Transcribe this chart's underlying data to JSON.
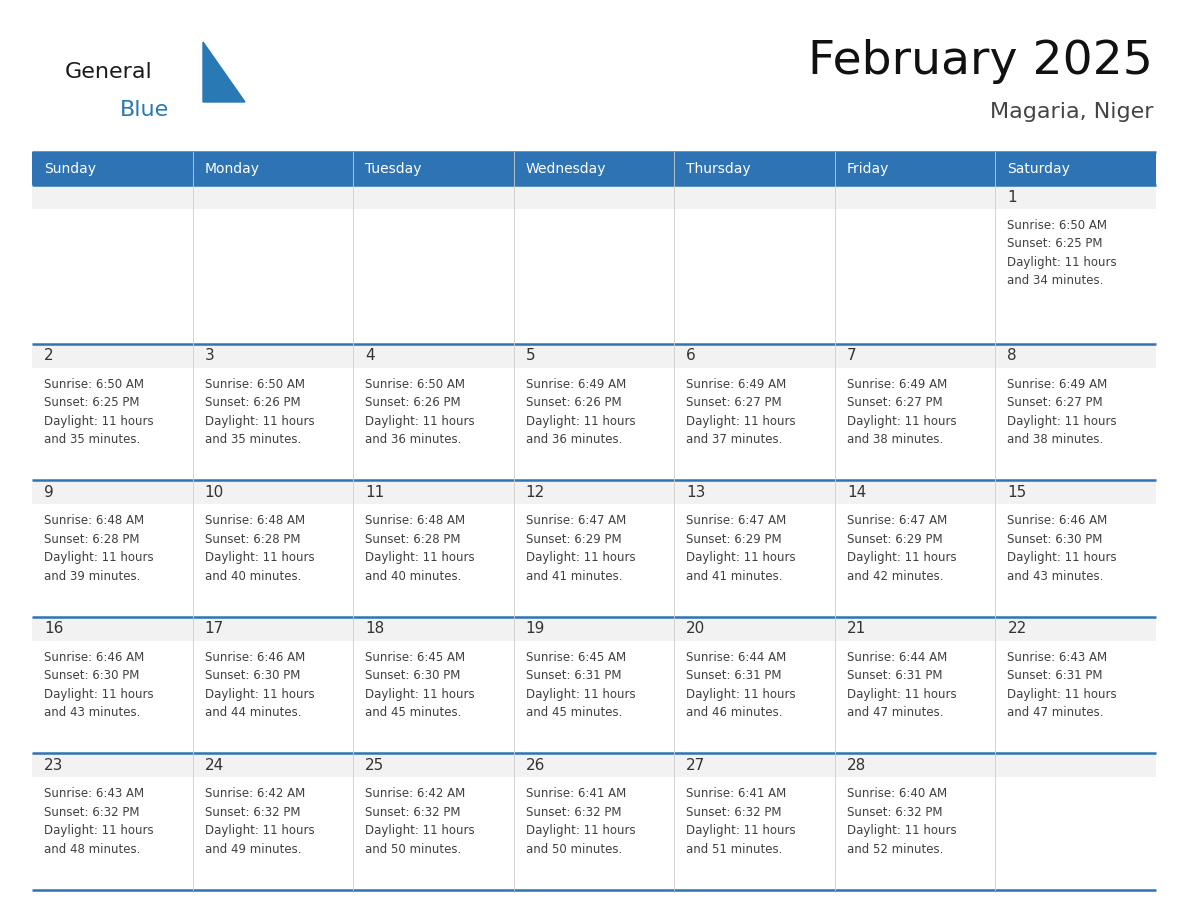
{
  "title": "February 2025",
  "subtitle": "Magaria, Niger",
  "header_bg": "#2E74B5",
  "header_text_color": "#FFFFFF",
  "day_names": [
    "Sunday",
    "Monday",
    "Tuesday",
    "Wednesday",
    "Thursday",
    "Friday",
    "Saturday"
  ],
  "cell_bg_gray": "#F2F2F2",
  "cell_bg_white": "#FFFFFF",
  "divider_color": "#2E74B5",
  "number_color": "#333333",
  "text_color": "#404040",
  "calendar_data": [
    [
      {
        "day": null,
        "sunrise": null,
        "sunset": null,
        "daylight_a": null,
        "daylight_b": null
      },
      {
        "day": null,
        "sunrise": null,
        "sunset": null,
        "daylight_a": null,
        "daylight_b": null
      },
      {
        "day": null,
        "sunrise": null,
        "sunset": null,
        "daylight_a": null,
        "daylight_b": null
      },
      {
        "day": null,
        "sunrise": null,
        "sunset": null,
        "daylight_a": null,
        "daylight_b": null
      },
      {
        "day": null,
        "sunrise": null,
        "sunset": null,
        "daylight_a": null,
        "daylight_b": null
      },
      {
        "day": null,
        "sunrise": null,
        "sunset": null,
        "daylight_a": null,
        "daylight_b": null
      },
      {
        "day": 1,
        "sunrise": "6:50 AM",
        "sunset": "6:25 PM",
        "daylight_a": "11 hours",
        "daylight_b": "and 34 minutes."
      }
    ],
    [
      {
        "day": 2,
        "sunrise": "6:50 AM",
        "sunset": "6:25 PM",
        "daylight_a": "11 hours",
        "daylight_b": "and 35 minutes."
      },
      {
        "day": 3,
        "sunrise": "6:50 AM",
        "sunset": "6:26 PM",
        "daylight_a": "11 hours",
        "daylight_b": "and 35 minutes."
      },
      {
        "day": 4,
        "sunrise": "6:50 AM",
        "sunset": "6:26 PM",
        "daylight_a": "11 hours",
        "daylight_b": "and 36 minutes."
      },
      {
        "day": 5,
        "sunrise": "6:49 AM",
        "sunset": "6:26 PM",
        "daylight_a": "11 hours",
        "daylight_b": "and 36 minutes."
      },
      {
        "day": 6,
        "sunrise": "6:49 AM",
        "sunset": "6:27 PM",
        "daylight_a": "11 hours",
        "daylight_b": "and 37 minutes."
      },
      {
        "day": 7,
        "sunrise": "6:49 AM",
        "sunset": "6:27 PM",
        "daylight_a": "11 hours",
        "daylight_b": "and 38 minutes."
      },
      {
        "day": 8,
        "sunrise": "6:49 AM",
        "sunset": "6:27 PM",
        "daylight_a": "11 hours",
        "daylight_b": "and 38 minutes."
      }
    ],
    [
      {
        "day": 9,
        "sunrise": "6:48 AM",
        "sunset": "6:28 PM",
        "daylight_a": "11 hours",
        "daylight_b": "and 39 minutes."
      },
      {
        "day": 10,
        "sunrise": "6:48 AM",
        "sunset": "6:28 PM",
        "daylight_a": "11 hours",
        "daylight_b": "and 40 minutes."
      },
      {
        "day": 11,
        "sunrise": "6:48 AM",
        "sunset": "6:28 PM",
        "daylight_a": "11 hours",
        "daylight_b": "and 40 minutes."
      },
      {
        "day": 12,
        "sunrise": "6:47 AM",
        "sunset": "6:29 PM",
        "daylight_a": "11 hours",
        "daylight_b": "and 41 minutes."
      },
      {
        "day": 13,
        "sunrise": "6:47 AM",
        "sunset": "6:29 PM",
        "daylight_a": "11 hours",
        "daylight_b": "and 41 minutes."
      },
      {
        "day": 14,
        "sunrise": "6:47 AM",
        "sunset": "6:29 PM",
        "daylight_a": "11 hours",
        "daylight_b": "and 42 minutes."
      },
      {
        "day": 15,
        "sunrise": "6:46 AM",
        "sunset": "6:30 PM",
        "daylight_a": "11 hours",
        "daylight_b": "and 43 minutes."
      }
    ],
    [
      {
        "day": 16,
        "sunrise": "6:46 AM",
        "sunset": "6:30 PM",
        "daylight_a": "11 hours",
        "daylight_b": "and 43 minutes."
      },
      {
        "day": 17,
        "sunrise": "6:46 AM",
        "sunset": "6:30 PM",
        "daylight_a": "11 hours",
        "daylight_b": "and 44 minutes."
      },
      {
        "day": 18,
        "sunrise": "6:45 AM",
        "sunset": "6:30 PM",
        "daylight_a": "11 hours",
        "daylight_b": "and 45 minutes."
      },
      {
        "day": 19,
        "sunrise": "6:45 AM",
        "sunset": "6:31 PM",
        "daylight_a": "11 hours",
        "daylight_b": "and 45 minutes."
      },
      {
        "day": 20,
        "sunrise": "6:44 AM",
        "sunset": "6:31 PM",
        "daylight_a": "11 hours",
        "daylight_b": "and 46 minutes."
      },
      {
        "day": 21,
        "sunrise": "6:44 AM",
        "sunset": "6:31 PM",
        "daylight_a": "11 hours",
        "daylight_b": "and 47 minutes."
      },
      {
        "day": 22,
        "sunrise": "6:43 AM",
        "sunset": "6:31 PM",
        "daylight_a": "11 hours",
        "daylight_b": "and 47 minutes."
      }
    ],
    [
      {
        "day": 23,
        "sunrise": "6:43 AM",
        "sunset": "6:32 PM",
        "daylight_a": "11 hours",
        "daylight_b": "and 48 minutes."
      },
      {
        "day": 24,
        "sunrise": "6:42 AM",
        "sunset": "6:32 PM",
        "daylight_a": "11 hours",
        "daylight_b": "and 49 minutes."
      },
      {
        "day": 25,
        "sunrise": "6:42 AM",
        "sunset": "6:32 PM",
        "daylight_a": "11 hours",
        "daylight_b": "and 50 minutes."
      },
      {
        "day": 26,
        "sunrise": "6:41 AM",
        "sunset": "6:32 PM",
        "daylight_a": "11 hours",
        "daylight_b": "and 50 minutes."
      },
      {
        "day": 27,
        "sunrise": "6:41 AM",
        "sunset": "6:32 PM",
        "daylight_a": "11 hours",
        "daylight_b": "and 51 minutes."
      },
      {
        "day": 28,
        "sunrise": "6:40 AM",
        "sunset": "6:32 PM",
        "daylight_a": "11 hours",
        "daylight_b": "and 52 minutes."
      },
      {
        "day": null,
        "sunrise": null,
        "sunset": null,
        "daylight_a": null,
        "daylight_b": null
      }
    ]
  ],
  "logo_general_color": "#1a1a1a",
  "logo_blue_color": "#2979B5",
  "figsize": [
    11.88,
    9.18
  ],
  "dpi": 100
}
